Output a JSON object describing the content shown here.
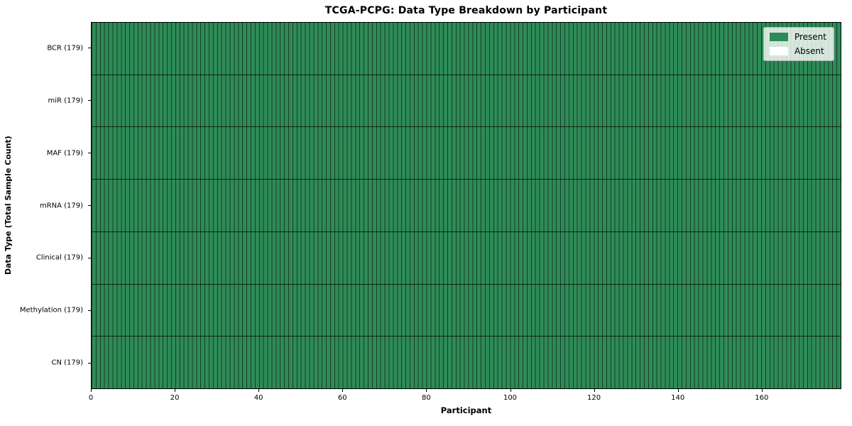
{
  "chart_data": {
    "type": "heatmap",
    "title": "TCGA-PCPG: Data Type Breakdown by Participant",
    "xlabel": "Participant",
    "ylabel": "Data Type (Total Sample Count)",
    "n_participants": 179,
    "x_min": 0,
    "x_max": 179,
    "x_ticks": [
      0,
      20,
      40,
      60,
      80,
      100,
      120,
      140,
      160
    ],
    "rows": [
      {
        "data_type": "BCR",
        "label": "BCR (179)",
        "total": 179,
        "present": 179,
        "absent": 0
      },
      {
        "data_type": "miR",
        "label": "miR (179)",
        "total": 179,
        "present": 179,
        "absent": 0
      },
      {
        "data_type": "MAF",
        "label": "MAF (179)",
        "total": 179,
        "present": 179,
        "absent": 0
      },
      {
        "data_type": "mRNA",
        "label": "mRNA (179)",
        "total": 179,
        "present": 179,
        "absent": 0
      },
      {
        "data_type": "Clinical",
        "label": "Clinical (179)",
        "total": 179,
        "present": 179,
        "absent": 0
      },
      {
        "data_type": "Methylation",
        "label": "Methylation (179)",
        "total": 179,
        "present": 179,
        "absent": 0
      },
      {
        "data_type": "CN",
        "label": "CN (179)",
        "total": 179,
        "present": 179,
        "absent": 0
      }
    ],
    "legend": [
      {
        "label": "Present",
        "color": "#2e8b57"
      },
      {
        "label": "Absent",
        "color": "#ffffff"
      }
    ],
    "colors": {
      "present": "#2e8b57",
      "absent": "#ffffff",
      "cell_edge": "rgba(0,0,0,0.55)",
      "row_edge": "rgba(0,0,0,0.70)",
      "frame": "#000000"
    },
    "legend_position": "upper right",
    "grid": "per-cell vertical separators and per-row horizontal separators"
  }
}
